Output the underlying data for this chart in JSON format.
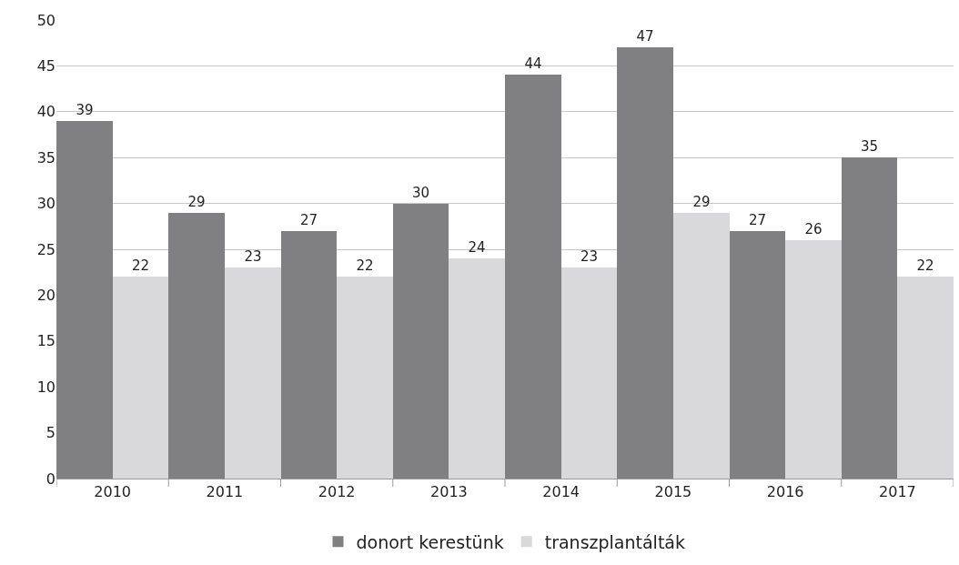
{
  "chart_data": {
    "type": "bar",
    "categories": [
      "2010",
      "2011",
      "2012",
      "2013",
      "2014",
      "2015",
      "2016",
      "2017"
    ],
    "series": [
      {
        "name": "donort kerestünk",
        "color": "#808083",
        "values": [
          39,
          29,
          27,
          30,
          44,
          47,
          27,
          35
        ]
      },
      {
        "name": "transzplantálták",
        "color": "#d9d9db",
        "values": [
          22,
          23,
          22,
          24,
          23,
          29,
          26,
          22
        ]
      }
    ],
    "ylim": [
      0,
      50
    ],
    "yticks": [
      0,
      5,
      10,
      15,
      20,
      25,
      30,
      35,
      40,
      45,
      50
    ],
    "grid": "y",
    "legend": "bottom",
    "data_labels": true
  }
}
